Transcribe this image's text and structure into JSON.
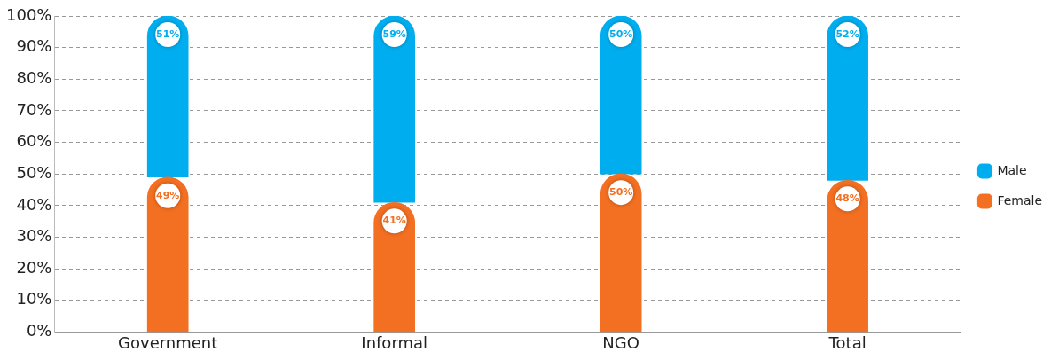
{
  "chart_data": {
    "type": "bar",
    "stacked": true,
    "categories": [
      "Government",
      "Informal",
      "NGO",
      "Total"
    ],
    "series": [
      {
        "name": "Female",
        "color": "#f36f21",
        "values": [
          49,
          41,
          50,
          48
        ],
        "value_labels": [
          "49%",
          "41%",
          "50%",
          "48%"
        ]
      },
      {
        "name": "Male",
        "color": "#00aeef",
        "values": [
          51,
          59,
          50,
          52
        ],
        "value_labels": [
          "51%",
          "59%",
          "50%",
          "52%"
        ]
      }
    ],
    "ylim": [
      0,
      100
    ],
    "yticks": [
      {
        "value": 0,
        "label": "0%"
      },
      {
        "value": 10,
        "label": "10%"
      },
      {
        "value": 20,
        "label": "20%"
      },
      {
        "value": 30,
        "label": "30%"
      },
      {
        "value": 40,
        "label": "40%"
      },
      {
        "value": 50,
        "label": "50%"
      },
      {
        "value": 60,
        "label": "60%"
      },
      {
        "value": 70,
        "label": "70%"
      },
      {
        "value": 80,
        "label": "80%"
      },
      {
        "value": 90,
        "label": "90%"
      },
      {
        "value": 100,
        "label": "100%"
      }
    ],
    "grid": "y",
    "legend": "right"
  }
}
